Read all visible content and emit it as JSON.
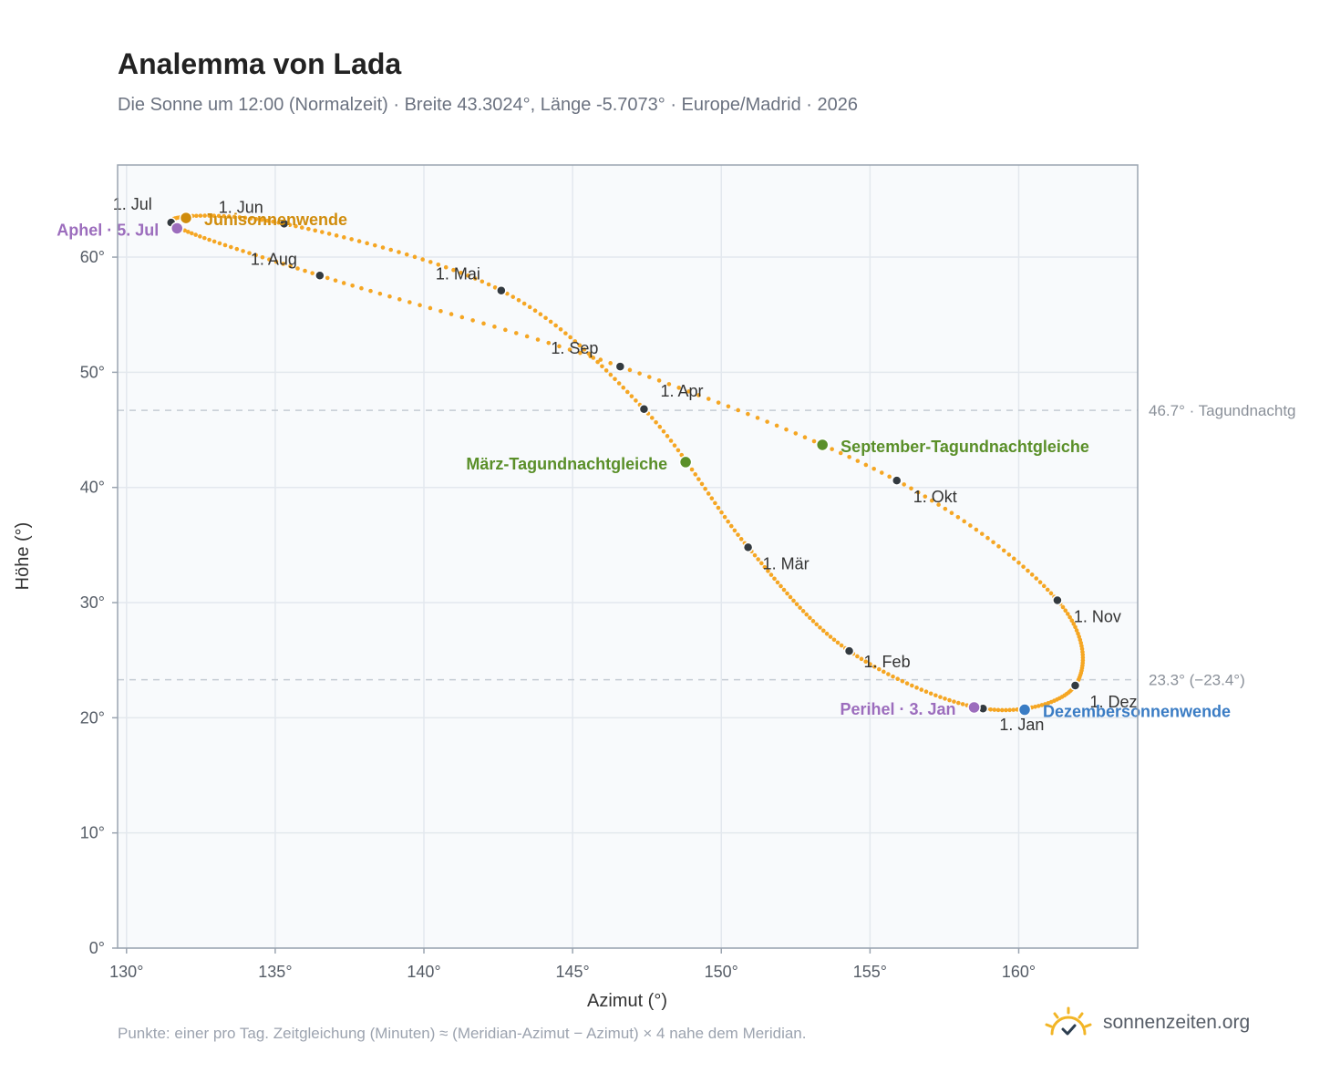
{
  "header": {
    "title": "Analemma von Lada",
    "subtitle": "Die Sonne um 12:00 (Normalzeit) · Breite 43.3024°, Länge -5.7073° · Europe/Madrid · 2026"
  },
  "footer": {
    "note": "Punkte: einer pro Tag. Zeitgleichung (Minuten) ≈ (Meridian-Azimut − Azimut) × 4 nahe dem Meridian.",
    "brand": "sonnenzeiten.org"
  },
  "colors": {
    "curve": "#f5a623",
    "month_marker": "#333a40",
    "solstice_june": "#d08c0c",
    "equinox": "#5a8f29",
    "solstice_december": "#3a7cc4",
    "apsis": "#9c6dbd",
    "reference_line": "#c5ccd4",
    "plot_bg": "#f8fafc",
    "grid": "#e3e8ee",
    "frame": "#9aa4b0",
    "brand_sun": "#f2b526"
  },
  "chart_data": {
    "type": "scatter",
    "x_label": "Azimut (°)",
    "y_label": "Höhe (°)",
    "xlim": [
      129.7,
      164.0
    ],
    "ylim": [
      0,
      68
    ],
    "x_ticks": [
      130,
      135,
      140,
      145,
      150,
      155,
      160
    ],
    "x_tick_labels": [
      "130°",
      "135°",
      "140°",
      "145°",
      "150°",
      "155°",
      "160°"
    ],
    "y_ticks": [
      0,
      10,
      20,
      30,
      40,
      50,
      60
    ],
    "y_tick_labels": [
      "0°",
      "10°",
      "20°",
      "30°",
      "40°",
      "50°",
      "60°"
    ],
    "grid": true,
    "curve_description": "one point per day",
    "month_markers": [
      {
        "label": "1. Jan",
        "x": 158.8,
        "y": 20.8
      },
      {
        "label": "1. Feb",
        "x": 154.3,
        "y": 25.8
      },
      {
        "label": "1. Mär",
        "x": 150.9,
        "y": 34.8
      },
      {
        "label": "1. Apr",
        "x": 147.4,
        "y": 46.8
      },
      {
        "label": "1. Mai",
        "x": 142.6,
        "y": 57.1
      },
      {
        "label": "1. Jun",
        "x": 135.3,
        "y": 62.9
      },
      {
        "label": "1. Jul",
        "x": 131.5,
        "y": 63.0
      },
      {
        "label": "1. Aug",
        "x": 136.5,
        "y": 58.4
      },
      {
        "label": "1. Sep",
        "x": 146.6,
        "y": 50.5
      },
      {
        "label": "1. Okt",
        "x": 155.9,
        "y": 40.6
      },
      {
        "label": "1. Nov",
        "x": 161.3,
        "y": 30.2
      },
      {
        "label": "1. Dez",
        "x": 161.9,
        "y": 22.8
      }
    ],
    "events": [
      {
        "label": "Junisonnenwende",
        "x": 132.0,
        "y": 63.4,
        "kind": "solstice_june"
      },
      {
        "label": "Aphel · 5. Jul",
        "x": 131.7,
        "y": 62.5,
        "kind": "apsis"
      },
      {
        "label": "März-Tagundnachtgleiche",
        "x": 148.8,
        "y": 42.2,
        "kind": "equinox"
      },
      {
        "label": "September-Tagundnachtgleiche",
        "x": 153.4,
        "y": 43.7,
        "kind": "equinox"
      },
      {
        "label": "Perihel · 3. Jan",
        "x": 158.5,
        "y": 20.9,
        "kind": "apsis"
      },
      {
        "label": "Dezembersonnenwende",
        "x": 160.2,
        "y": 20.7,
        "kind": "solstice_december"
      }
    ],
    "reference_lines": [
      {
        "y": 46.7,
        "label": "46.7° · Tagundnachtg"
      },
      {
        "y": 23.3,
        "label": "23.3° (−23.4°)"
      }
    ]
  }
}
